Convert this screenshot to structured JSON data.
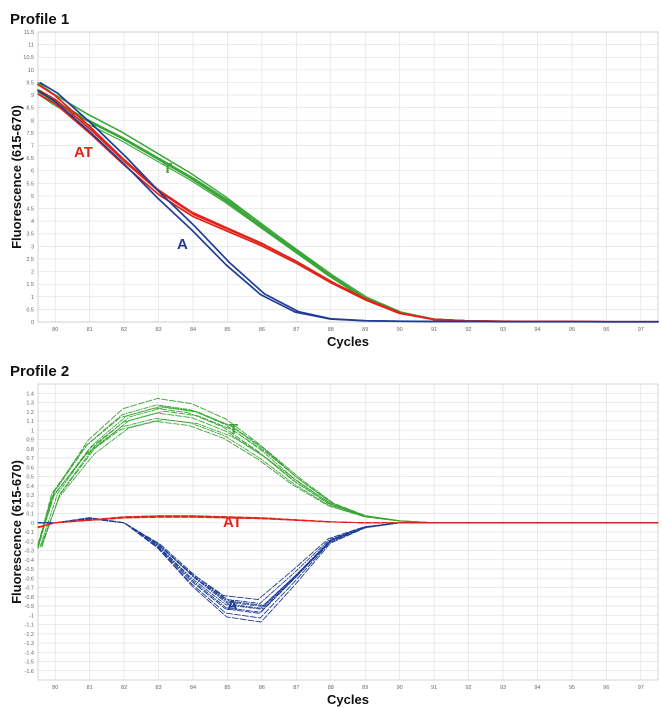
{
  "chart_data": [
    {
      "type": "line",
      "title": "Profile 1",
      "xlabel": "Cycles",
      "ylabel": "Fluorescence (615-670)",
      "xlim": [
        79.5,
        97.5
      ],
      "ylim": [
        0,
        11.5
      ],
      "grid": true,
      "x_ticks": [
        80,
        81,
        82,
        83,
        84,
        85,
        86,
        87,
        88,
        89,
        90,
        91,
        92,
        93,
        94,
        95,
        96,
        97
      ],
      "y_ticks": [
        0,
        0.5,
        1,
        1.5,
        2,
        2.5,
        3,
        3.5,
        4,
        4.5,
        5,
        5.5,
        6,
        6.5,
        7,
        7.5,
        8,
        8.5,
        9,
        9.5,
        10,
        10.5,
        11,
        11.5
      ],
      "annotations": [
        {
          "text": "AT",
          "color": "#e32219"
        },
        {
          "text": "T",
          "color": "#3aa637"
        },
        {
          "text": "A",
          "color": "#1f3e96"
        }
      ],
      "series": [
        {
          "group": "T",
          "color": "#3aa637",
          "count": 8,
          "x": [
            79.5,
            80,
            81,
            82,
            83,
            84,
            85,
            86,
            87,
            88,
            89,
            90,
            91,
            92,
            93,
            94,
            95,
            96,
            97,
            97.5
          ],
          "y": [
            9.3,
            8.9,
            8.1,
            7.4,
            6.6,
            5.8,
            4.9,
            3.9,
            2.9,
            1.9,
            1.0,
            0.4,
            0.12,
            0.05,
            0.03,
            0.02,
            0.02,
            0.01,
            0.01,
            0.01
          ]
        },
        {
          "group": "AT",
          "color": "#e32219",
          "count": 3,
          "x": [
            79.5,
            80,
            81,
            82,
            83,
            84,
            85,
            86,
            87,
            88,
            89,
            90,
            91,
            92,
            93,
            94,
            95,
            96,
            97,
            97.5
          ],
          "y": [
            9.3,
            8.9,
            7.7,
            6.4,
            5.2,
            4.3,
            3.7,
            3.1,
            2.4,
            1.6,
            0.9,
            0.35,
            0.1,
            0.04,
            0.03,
            0.02,
            0.02,
            0.01,
            0.01,
            0.01
          ]
        },
        {
          "group": "A",
          "color": "#1f3e96",
          "count": 2,
          "x": [
            79.5,
            80,
            81,
            82,
            83,
            84,
            85,
            86,
            87,
            88,
            89,
            90,
            91,
            92,
            93,
            94,
            95,
            96,
            97,
            97.5
          ],
          "y": [
            9.3,
            8.9,
            7.7,
            6.4,
            5.0,
            3.7,
            2.3,
            1.1,
            0.4,
            0.12,
            0.05,
            0.03,
            0.02,
            0.02,
            0.01,
            0.01,
            0.01,
            0.01,
            0.01,
            0.01
          ]
        }
      ]
    },
    {
      "type": "line",
      "title": "Profile 2",
      "xlabel": "Cycles",
      "ylabel": "Fluorescence (615-670)",
      "xlim": [
        79.5,
        97.5
      ],
      "ylim": [
        -1.7,
        1.5
      ],
      "grid": true,
      "x_ticks": [
        80,
        81,
        82,
        83,
        84,
        85,
        86,
        87,
        88,
        89,
        90,
        91,
        92,
        93,
        94,
        95,
        96,
        97
      ],
      "y_ticks": [
        -1.6,
        -1.5,
        -1.4,
        -1.3,
        -1.2,
        -1.1,
        -1,
        -0.9,
        -0.8,
        -0.7,
        -0.6,
        -0.5,
        -0.4,
        -0.3,
        -0.2,
        -0.1,
        0,
        0.1,
        0.2,
        0.3,
        0.4,
        0.5,
        0.6,
        0.7,
        0.8,
        0.9,
        1,
        1.1,
        1.2,
        1.3,
        1.4
      ],
      "annotations": [
        {
          "text": "T",
          "color": "#3aa637"
        },
        {
          "text": "AT",
          "color": "#e32219"
        },
        {
          "text": "A",
          "color": "#1f3e96"
        }
      ],
      "series": [
        {
          "group": "T",
          "color": "#3aa637",
          "count": 10,
          "dashed": true,
          "x": [
            79.5,
            80,
            81,
            82,
            83,
            84,
            85,
            86,
            87,
            88,
            89,
            90,
            91,
            92,
            93,
            94,
            95,
            96,
            97,
            97.5
          ],
          "y": [
            -0.25,
            0.3,
            0.8,
            1.1,
            1.2,
            1.15,
            1.0,
            0.75,
            0.45,
            0.2,
            0.07,
            0.02,
            0.0,
            0.0,
            0.0,
            0.0,
            0.0,
            0.0,
            0.0,
            0.0
          ]
        },
        {
          "group": "AT",
          "color": "#e32219",
          "count": 10,
          "dashed": true,
          "x": [
            79.5,
            80,
            81,
            82,
            83,
            84,
            85,
            86,
            87,
            88,
            89,
            90,
            91,
            92,
            93,
            94,
            95,
            96,
            97,
            97.5
          ],
          "y": [
            -0.05,
            0.0,
            0.03,
            0.06,
            0.07,
            0.07,
            0.06,
            0.05,
            0.03,
            0.01,
            0.0,
            0.0,
            0.0,
            0.0,
            0.0,
            0.0,
            0.0,
            0.0,
            0.0,
            0.0
          ]
        },
        {
          "group": "A",
          "color": "#1f3e96",
          "count": 10,
          "dashed": true,
          "x": [
            79.5,
            80,
            81,
            82,
            83,
            84,
            85,
            86,
            87,
            88,
            89,
            90,
            91,
            92,
            93,
            94,
            95,
            96,
            97,
            97.5
          ],
          "y": [
            0.0,
            0.0,
            0.05,
            0.0,
            -0.25,
            -0.62,
            -0.92,
            -0.97,
            -0.6,
            -0.2,
            -0.05,
            0.0,
            0.0,
            0.0,
            0.0,
            0.0,
            0.0,
            0.0,
            0.0,
            0.0
          ]
        }
      ]
    }
  ]
}
